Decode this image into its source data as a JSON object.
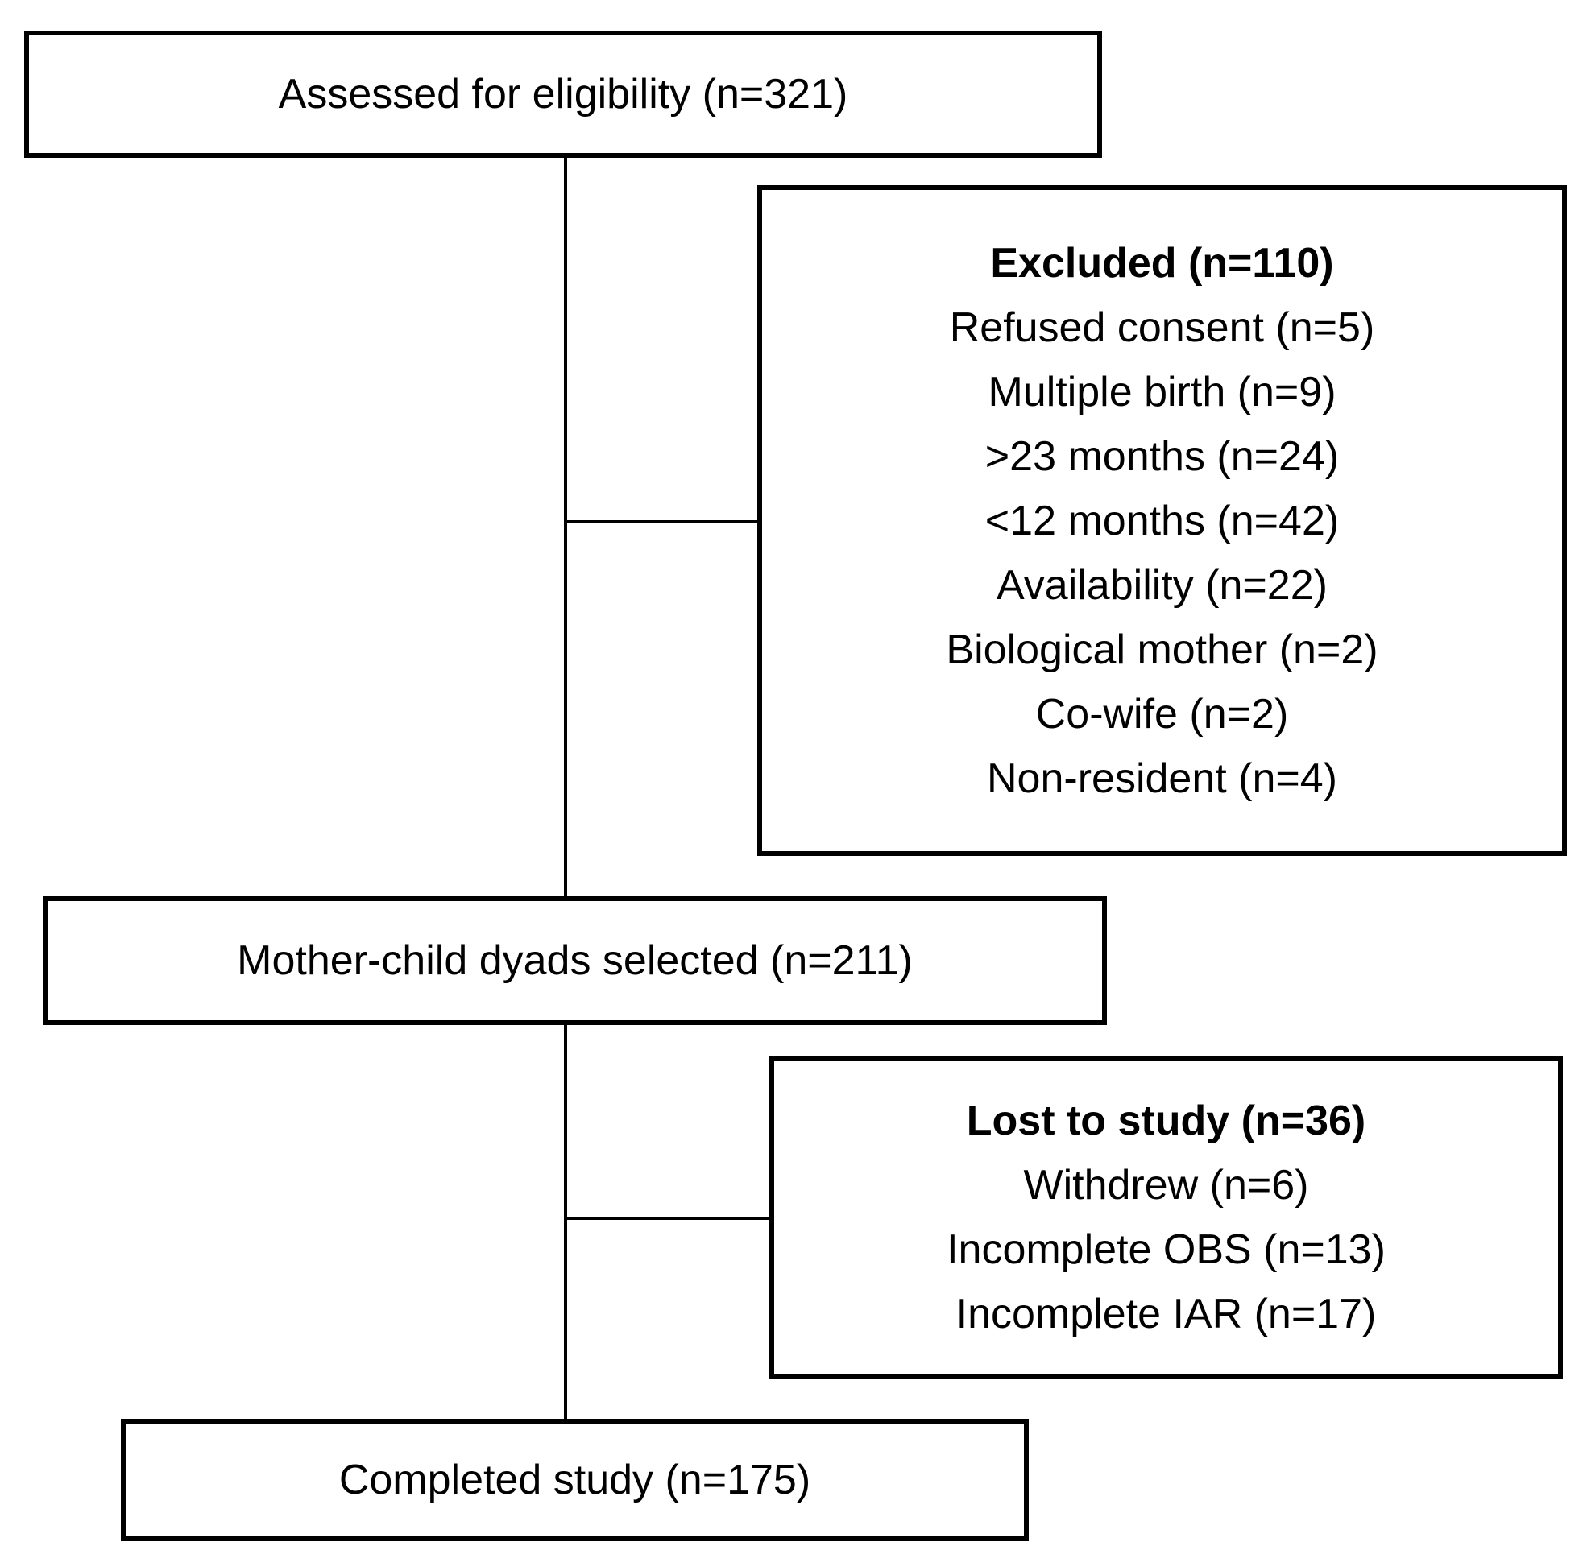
{
  "boxes": {
    "assessed": {
      "label": "Assessed for eligibility (n=321)"
    },
    "excluded": {
      "title": "Excluded (n=110)",
      "items": [
        "Refused consent (n=5)",
        "Multiple birth (n=9)",
        ">23 months (n=24)",
        "<12 months (n=42)",
        "Availability (n=22)",
        "Biological mother (n=2)",
        "Co-wife (n=2)",
        "Non-resident (n=4)"
      ]
    },
    "selected": {
      "label": "Mother-child dyads selected (n=211)"
    },
    "lost": {
      "title": "Lost to study (n=36)",
      "items": [
        "Withdrew (n=6)",
        "Incomplete OBS (n=13)",
        "Incomplete IAR (n=17)"
      ]
    },
    "completed": {
      "label": "Completed study (n=175)"
    }
  },
  "colors": {
    "border": "#000000",
    "background": "#ffffff",
    "text": "#000000"
  }
}
